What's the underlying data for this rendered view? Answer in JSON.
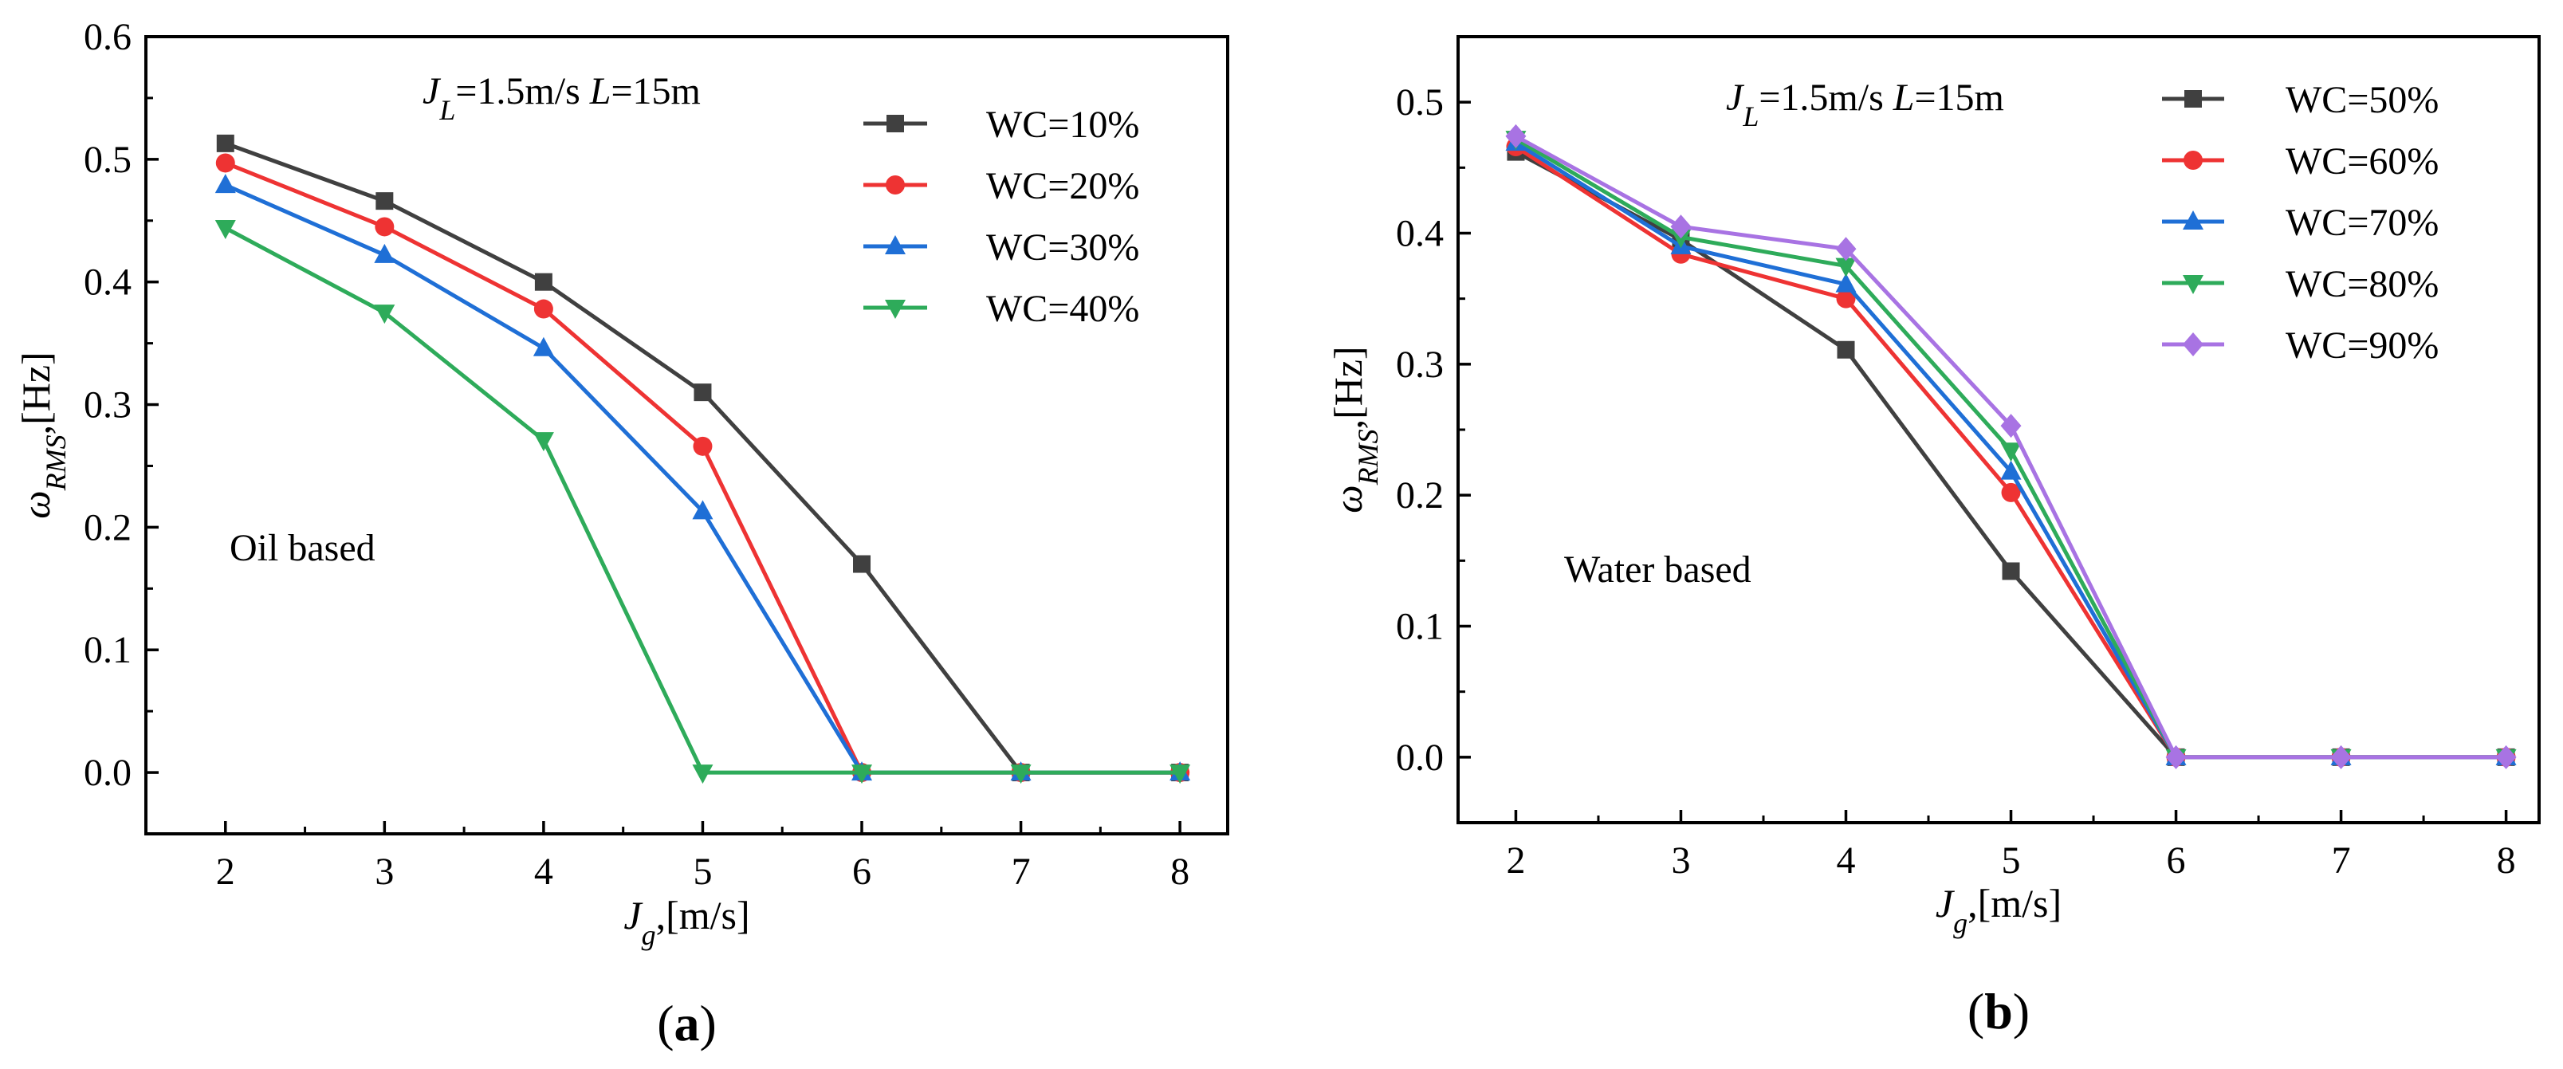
{
  "chart_data": [
    {
      "type": "line",
      "panel_label": "a",
      "annotation_conditions": {
        "jl_symbol": "J",
        "jl_sub": "L",
        "jl_value": "=1.5m/s ",
        "l_symbol": "L",
        "l_value": "=15m"
      },
      "annotation_text": "Oil based",
      "xlabel": {
        "symbol": "J",
        "sub": "g",
        "unit": ",[m/s]"
      },
      "ylabel": {
        "symbol": "ω",
        "sub": "RMS",
        "unit": ",[Hz]"
      },
      "x": [
        2,
        3,
        4,
        5,
        6,
        7,
        8
      ],
      "xlim": [
        1.5,
        8.3
      ],
      "ylim": [
        -0.05,
        0.6
      ],
      "x_ticks": [
        "2",
        "3",
        "4",
        "5",
        "6",
        "7",
        "8"
      ],
      "y_ticks": [
        "0.0",
        "0.1",
        "0.2",
        "0.3",
        "0.4",
        "0.5",
        "0.6"
      ],
      "grid": false,
      "legend_position": "top-right",
      "series": [
        {
          "name": "WC=10%",
          "color": "#404040",
          "marker": "square",
          "values": [
            0.513,
            0.466,
            0.4,
            0.31,
            0.17,
            0.0,
            0.0
          ]
        },
        {
          "name": "WC=20%",
          "color": "#ee3333",
          "marker": "circle",
          "values": [
            0.497,
            0.445,
            0.378,
            0.266,
            0.0,
            0.0,
            0.0
          ]
        },
        {
          "name": "WC=30%",
          "color": "#1f6fd6",
          "marker": "triangle-up",
          "values": [
            0.479,
            0.422,
            0.346,
            0.213,
            0.0,
            0.0,
            0.0
          ]
        },
        {
          "name": "WC=40%",
          "color": "#2eab5a",
          "marker": "triangle-down",
          "values": [
            0.444,
            0.375,
            0.271,
            0.0,
            0.0,
            0.0,
            0.0
          ]
        }
      ]
    },
    {
      "type": "line",
      "panel_label": "b",
      "annotation_conditions": {
        "jl_symbol": "J",
        "jl_sub": "L",
        "jl_value": "=1.5m/s ",
        "l_symbol": "L",
        "l_value": "=15m"
      },
      "annotation_text": "Water based",
      "xlabel": {
        "symbol": "J",
        "sub": "g",
        "unit": ",[m/s]"
      },
      "ylabel": {
        "symbol": "ω",
        "sub": "RMS",
        "unit": ",[Hz]"
      },
      "x": [
        2,
        3,
        4,
        5,
        6,
        7,
        8
      ],
      "xlim": [
        1.65,
        8.2
      ],
      "ylim": [
        -0.05,
        0.55
      ],
      "x_ticks": [
        "2",
        "3",
        "4",
        "5",
        "6",
        "7",
        "8"
      ],
      "y_ticks": [
        "0.0",
        "0.1",
        "0.2",
        "0.3",
        "0.4",
        "0.5"
      ],
      "grid": false,
      "legend_position": "top-right",
      "series": [
        {
          "name": "WC=50%",
          "color": "#404040",
          "marker": "square",
          "values": [
            0.462,
            0.395,
            0.311,
            0.142,
            0.0,
            0.0,
            0.0
          ]
        },
        {
          "name": "WC=60%",
          "color": "#ee3333",
          "marker": "circle",
          "values": [
            0.466,
            0.384,
            0.35,
            0.202,
            0.0,
            0.0,
            0.0
          ]
        },
        {
          "name": "WC=70%",
          "color": "#1f6fd6",
          "marker": "triangle-up",
          "values": [
            0.469,
            0.39,
            0.361,
            0.218,
            0.0,
            0.0,
            0.0
          ]
        },
        {
          "name": "WC=80%",
          "color": "#2eab5a",
          "marker": "triangle-down",
          "values": [
            0.472,
            0.397,
            0.375,
            0.234,
            0.0,
            0.0,
            0.0
          ]
        },
        {
          "name": "WC=90%",
          "color": "#a873e3",
          "marker": "diamond",
          "values": [
            0.474,
            0.405,
            0.388,
            0.253,
            0.0,
            0.0,
            0.0
          ]
        }
      ]
    }
  ]
}
